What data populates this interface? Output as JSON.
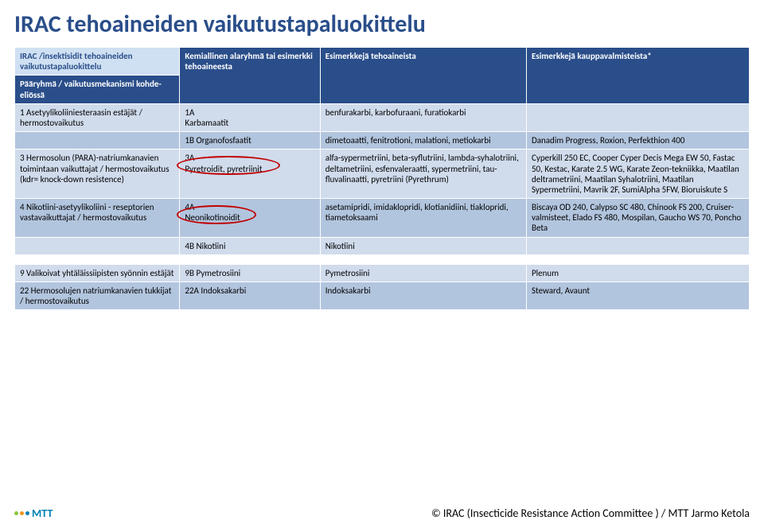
{
  "title": "IRAC tehoaineiden vaikutustapaluokittelu",
  "colors": {
    "title": "#2a4e8a",
    "header_bg": "#2a4e8a",
    "header_fg": "#ffffff",
    "section_bg": "#cfe0f2",
    "section_fg": "#2a4e8a",
    "row_light": "#d0dbec",
    "row_dark": "#b2c5de",
    "circle": "#c00000"
  },
  "headers": {
    "c1": "Pääryhmä / vaikutusmekanismi kohde-eliössä",
    "c2": "Kemiallinen alaryhmä tai esimerkki tehoaineesta",
    "c3": "Esimerkkejä tehoaineista",
    "c4": "Esimerkkejä kauppavalmisteista*"
  },
  "section": "IRAC /insektisidit tehoaineiden vaikutustapaluokittelu",
  "rows": {
    "r1": {
      "c1": "1 Asetyylikoliiniesteraasin estäjät / hermostovaikutus",
      "c2": "1A\nKarbamaatit",
      "c3": "benfurakarbi, karbofuraani, furatiokarbi",
      "c4": ""
    },
    "r1b": {
      "c1": "",
      "c2": "1B Organofosfaatit",
      "c3": "dimetoaatti, fenitrotioni, malationi, metiokarbi",
      "c4": "Danadim Progress, Roxion, Perfekthion 400"
    },
    "r3": {
      "c1": "3 Hermosolun (PARA)-natriumkanavien toimintaan vaikuttajat / hermostovaikutus (kdr= knock-down resistence)",
      "c2": "3A\nPyretroidit, pyretriinit",
      "c3": "alfa-sypermetriini, beta-syflutriini, lambda-syhalotriini, deltametriini, esfenvaleraatti, sypermetriini, tau-fluvalinaatti, pyretriini (Pyrethrum)",
      "c4": "Cyperkill 250 EC, Cooper Cyper Decis Mega EW 50, Fastac 50, Kestac, Karate 2.5 WG, Karate Zeon-tekniikka, Maatilan deltrametriini, Maatilan Syhalotriini, Maatilan Sypermetriini, Mavrik 2F, SumiAlpha 5FW, Bioruiskute S"
    },
    "r4": {
      "c1": "4 Nikotiini-asetyylikoliini - reseptorien vastavaikuttajat / hermostovaikutus",
      "c2": "4A\nNeonikotinoidit",
      "c3": "asetamipridi, imidaklopridi, klotianidiini, tiaklopridi, tiametoksaami",
      "c4": "Biscaya OD 240, Calypso SC 480, Chinook FS 200, Cruiser-valmisteet, Elado FS 480, Mospilan, Gaucho WS 70, Poncho Beta"
    },
    "r4b": {
      "c1": "",
      "c2": "4B Nikotiini",
      "c3": "Nikotiini",
      "c4": ""
    },
    "r9": {
      "c1": "9 Valikoivat yhtäläissiipisten syönnin estäjät",
      "c2": "9B Pymetrosiini",
      "c3": "Pymetrosiini",
      "c4": "Plenum"
    },
    "r22": {
      "c1": "22 Hermosolujen natriumkanavien tukkijat / hermostovaikutus",
      "c2": "22A Indoksakarbi",
      "c3": "Indoksakarbi",
      "c4": "Steward, Avaunt"
    }
  },
  "footer": {
    "credit": "© IRAC (Insecticide Resistance Action Committee ) / MTT Jarmo Ketola",
    "logo_text": "MTT",
    "logo_dots": [
      "#8cc63f",
      "#f7941d",
      "#0081b3"
    ]
  }
}
